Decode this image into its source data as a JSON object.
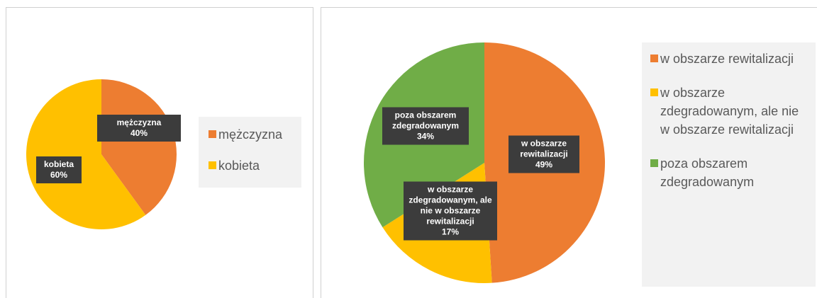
{
  "chart_data": [
    {
      "type": "pie",
      "categories": [
        "mężczyzna",
        "kobieta"
      ],
      "values": [
        40,
        60
      ],
      "value_labels": [
        "40%",
        "60%"
      ],
      "colors": [
        "#ED7D31",
        "#FFC000"
      ],
      "legend": "right"
    },
    {
      "type": "pie",
      "categories": [
        "w obszarze rewitalizacji",
        "w obszarze zdegradowanym, ale nie w obszarze rewitalizacji",
        "poza obszarem zdegradowanym"
      ],
      "values": [
        49,
        17,
        34
      ],
      "value_labels": [
        "49%",
        "17%",
        "34%"
      ],
      "colors": [
        "#ED7D31",
        "#FFC000",
        "#70AD47"
      ],
      "legend": "right"
    }
  ]
}
